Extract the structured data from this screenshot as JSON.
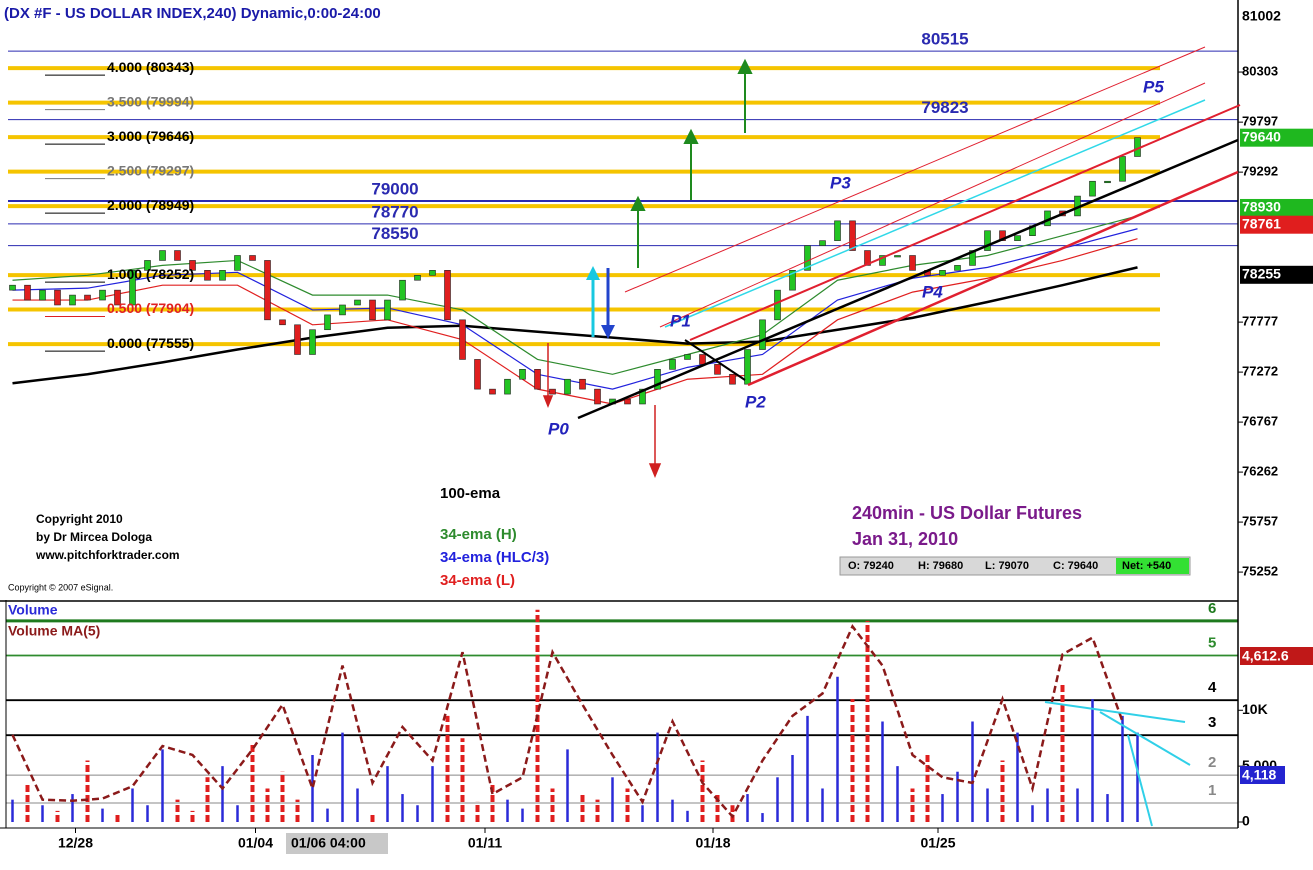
{
  "chart_data": [
    {
      "type": "candlestick",
      "title": "(DX #F - US DOLLAR INDEX,240) Dynamic,0:00-24:00",
      "xlim": [
        -0.5,
        81.5
      ],
      "xticks": [
        {
          "value": 4.2,
          "label": "12/28"
        },
        {
          "value": 16.2,
          "label": "01/04"
        },
        {
          "value": 31.5,
          "label": "01/11"
        },
        {
          "value": 46.7,
          "label": "01/18"
        },
        {
          "value": 61.7,
          "label": "01/25"
        }
      ],
      "ylim": [
        74970,
        80950
      ],
      "yticks": [
        80303,
        79797,
        79292,
        77777,
        77272,
        76767,
        76262,
        75757,
        75252
      ],
      "up_color": "#22c522",
      "down_color": "#e01e1e",
      "open": [
        78100,
        78150,
        78000,
        78100,
        77950,
        78050,
        78000,
        78100,
        77950,
        78300,
        78400,
        78500,
        78400,
        78300,
        78200,
        78300,
        78450,
        78400,
        77800,
        77750,
        77450,
        77700,
        77850,
        77950,
        78000,
        77800,
        78000,
        78200,
        78250,
        78300,
        77800,
        77400,
        77100,
        77050,
        77200,
        77300,
        77100,
        77050,
        77200,
        77100,
        76950,
        77000,
        76950,
        77100,
        77300,
        77400,
        77450,
        77350,
        77250,
        77150,
        77500,
        77800,
        78100,
        78300,
        78550,
        78600,
        78800,
        78500,
        78350,
        78450,
        78450,
        78300,
        78250,
        78300,
        78350,
        78500,
        78700,
        78600,
        78650,
        78750,
        78900,
        78850,
        79050,
        79200,
        79200,
        79450
      ],
      "close": [
        78150,
        78000,
        78100,
        77950,
        78050,
        78000,
        78100,
        77950,
        78300,
        78400,
        78500,
        78400,
        78300,
        78200,
        78300,
        78450,
        78400,
        77800,
        77750,
        77450,
        77700,
        77850,
        77950,
        78000,
        77800,
        78000,
        78200,
        78250,
        78300,
        77800,
        77400,
        77100,
        77050,
        77200,
        77300,
        77100,
        77050,
        77200,
        77100,
        76950,
        77000,
        76950,
        77100,
        77300,
        77400,
        77450,
        77350,
        77250,
        77150,
        77500,
        77800,
        78100,
        78300,
        78550,
        78600,
        78800,
        78500,
        78350,
        78450,
        78450,
        78300,
        78250,
        78300,
        78350,
        78500,
        78700,
        78600,
        78650,
        78750,
        78900,
        78850,
        79050,
        79200,
        79200,
        79450,
        79640
      ],
      "ema_x": [
        0,
        5,
        10,
        15,
        20,
        25,
        30,
        35,
        40,
        45,
        50,
        55,
        60,
        65,
        70,
        75
      ],
      "ema": [
        {
          "name": "100-ema",
          "color": "#000000",
          "values": [
            77160,
            77250,
            77370,
            77500,
            77620,
            77720,
            77740,
            77680,
            77620,
            77560,
            77580,
            77700,
            77820,
            77980,
            78150,
            78330
          ]
        },
        {
          "name": "34-ema (H)",
          "color": "#2e8b2e",
          "values": [
            78200,
            78250,
            78350,
            78400,
            78050,
            78050,
            77900,
            77400,
            77250,
            77450,
            77650,
            78200,
            78350,
            78450,
            78650,
            78850
          ]
        },
        {
          "name": "34-ema (HLC/3)",
          "color": "#2222dd",
          "values": [
            78100,
            78120,
            78250,
            78280,
            77900,
            77920,
            77750,
            77250,
            77100,
            77320,
            77450,
            78000,
            78220,
            78330,
            78520,
            78720
          ]
        },
        {
          "name": "34-ema (L)",
          "color": "#e02020",
          "values": [
            78000,
            78000,
            78150,
            78150,
            77750,
            77800,
            77600,
            77100,
            76950,
            77200,
            77250,
            77800,
            78080,
            78220,
            78400,
            78620
          ]
        }
      ],
      "levels": [
        {
          "value": 80343,
          "label": "4.000 (80343)",
          "color": "#000000"
        },
        {
          "value": 79994,
          "label": "3.500 (79994)",
          "color": "#777777"
        },
        {
          "value": 79646,
          "label": "3.000 (79646)",
          "color": "#000000"
        },
        {
          "value": 79297,
          "label": "2.500 (79297)",
          "color": "#777777"
        },
        {
          "value": 78949,
          "label": "2.000 (78949)",
          "color": "#000000"
        },
        {
          "value": 78252,
          "label": "1.000 (78252)",
          "color": "#000000"
        },
        {
          "value": 77904,
          "label": "0.500 (77904)",
          "color": "#e02020"
        },
        {
          "value": 77555,
          "label": "0.000 (77555)",
          "color": "#000000"
        }
      ],
      "level_color": "#f5c400",
      "price_lines": [
        80515,
        79823,
        79000,
        78770,
        78550
      ],
      "price_line_color": "#2a2ab0",
      "price_boxes": [
        {
          "value": 81002,
          "color": "#ffffff"
        },
        {
          "value": 79640,
          "color": "#1fb81f"
        },
        {
          "value": 78930,
          "color": "#1fb81f"
        },
        {
          "value": 78761,
          "color": "#e01e1e"
        },
        {
          "value": 78255,
          "color": "#000000"
        }
      ]
    },
    {
      "type": "bar",
      "ylim": [
        0,
        19600
      ],
      "yticks": [
        {
          "value": 10000,
          "label": "10K"
        },
        {
          "value": 5000,
          "label": "5,000"
        },
        0
      ],
      "series": [
        {
          "name": "Volume",
          "color": "#2a2ad8",
          "values": [
            2000,
            3500,
            1500,
            1000,
            2500,
            5500,
            1200,
            800,
            3000,
            1500,
            6500,
            2000,
            1000,
            4000,
            5000,
            1500,
            7000,
            3000,
            4500,
            2000,
            6000,
            1200,
            8000,
            3000,
            900,
            5000,
            2500,
            1500,
            5000,
            9500,
            7500,
            1800,
            3500,
            2000,
            1200,
            19000,
            3000,
            6500,
            2500,
            2000,
            4000,
            3000,
            1500,
            8000,
            2000,
            1000,
            5500,
            2500,
            1500,
            2500,
            800,
            4000,
            6000,
            9500,
            3000,
            13000,
            11000,
            18000,
            9000,
            5000,
            3000,
            6000,
            2500,
            4500,
            9000,
            3000,
            5500,
            8000,
            1500,
            3000,
            12500,
            3000,
            11000,
            2500,
            9500,
            8000
          ]
        }
      ],
      "down_color": "#e01e1e",
      "ma": {
        "name": "Volume MA(5)",
        "color": "#8b1a1a",
        "x": [
          0,
          2,
          4,
          6,
          8,
          10,
          12,
          14,
          16,
          18,
          20,
          22,
          24,
          26,
          28,
          30,
          32,
          34,
          36,
          38,
          40,
          42,
          44,
          46,
          48,
          50,
          52,
          54,
          56,
          58,
          60,
          62,
          64,
          66,
          68,
          70,
          72,
          74
        ],
        "values": [
          7800,
          2000,
          1900,
          2100,
          3200,
          6800,
          6000,
          3000,
          6500,
          10500,
          3000,
          14000,
          3500,
          8500,
          5500,
          15200,
          2500,
          4000,
          15200,
          10500,
          6000,
          1800,
          9000,
          3500,
          500,
          5500,
          9500,
          11500,
          17500,
          14000,
          6000,
          4000,
          3500,
          11000,
          3000,
          15000,
          16500,
          9000
        ]
      },
      "levels": [
        {
          "value": 1700,
          "label": "1",
          "color": "#888888"
        },
        {
          "value": 4200,
          "label": "2",
          "color": "#888888"
        },
        {
          "value": 7770,
          "label": "3",
          "color": "#000000"
        },
        {
          "value": 10900,
          "label": "4",
          "color": "#000000"
        },
        {
          "value": 14900,
          "label": "5",
          "color": "#2e8b2e"
        },
        {
          "value": 18000,
          "label": "6",
          "color": "#1e7a1e"
        }
      ],
      "value_boxes": [
        "4,612.6",
        "4,118"
      ]
    }
  ],
  "annotations": {
    "p0": "P0",
    "p1": "P1",
    "p2": "P2",
    "p3": "P3",
    "p4": "P4",
    "p5": "P5",
    "cursor": "01/06 04:00"
  },
  "info": {
    "copyright1": "Copyright 2010",
    "copyright2": "by Dr Mircea Dologa",
    "site": "www.pitchforktrader.com",
    "esignal": "Copyright © 2007 eSignal.",
    "title": "240min - US Dollar Futures",
    "date": "Jan 31, 2010",
    "open": "O: 79240",
    "high": "H: 79680",
    "low": "L: 79070",
    "close": "C: 79640",
    "net": "Net: +540"
  }
}
